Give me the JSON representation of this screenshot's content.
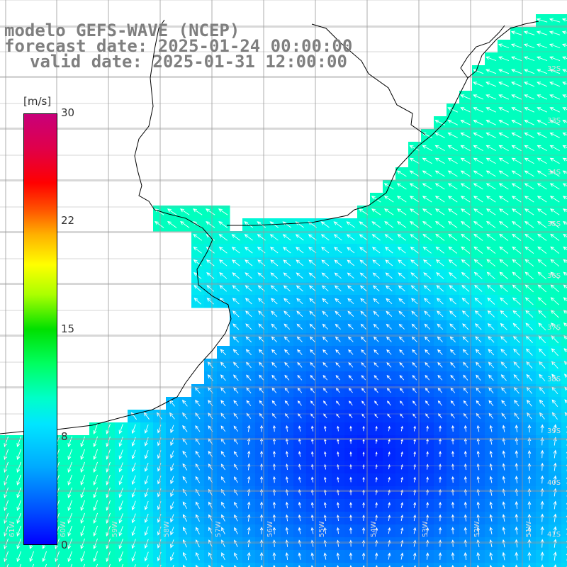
{
  "title": {
    "line1": "modelo GEFS-WAVE (NCEP)",
    "line2": "forecast date: 2025-01-24 00:00:00",
    "line3": "valid date: 2025-01-31 12:00:00"
  },
  "colorbar": {
    "unit": "[m/s]",
    "ticks": [
      "30",
      "22",
      "15",
      "8",
      "0"
    ],
    "range": [
      0,
      30
    ],
    "colors": [
      "#0000ff",
      "#00aaff",
      "#00ffc8",
      "#00e000",
      "#ffff00",
      "#ff5000",
      "#ff0000",
      "#c8007a"
    ]
  },
  "map": {
    "lat_labels": [
      "32S",
      "33S",
      "34S",
      "35S",
      "36S",
      "37S",
      "38S",
      "39S",
      "40S",
      "41S"
    ],
    "lon_labels": [
      "61W",
      "60W",
      "59W",
      "58W",
      "57W",
      "56W",
      "55W",
      "54W",
      "53W",
      "52W",
      "51W"
    ],
    "land_color": "#ffffff",
    "grid_color": "#999999",
    "coastline_color": "#000000",
    "arrow_color": "#ffffff"
  }
}
